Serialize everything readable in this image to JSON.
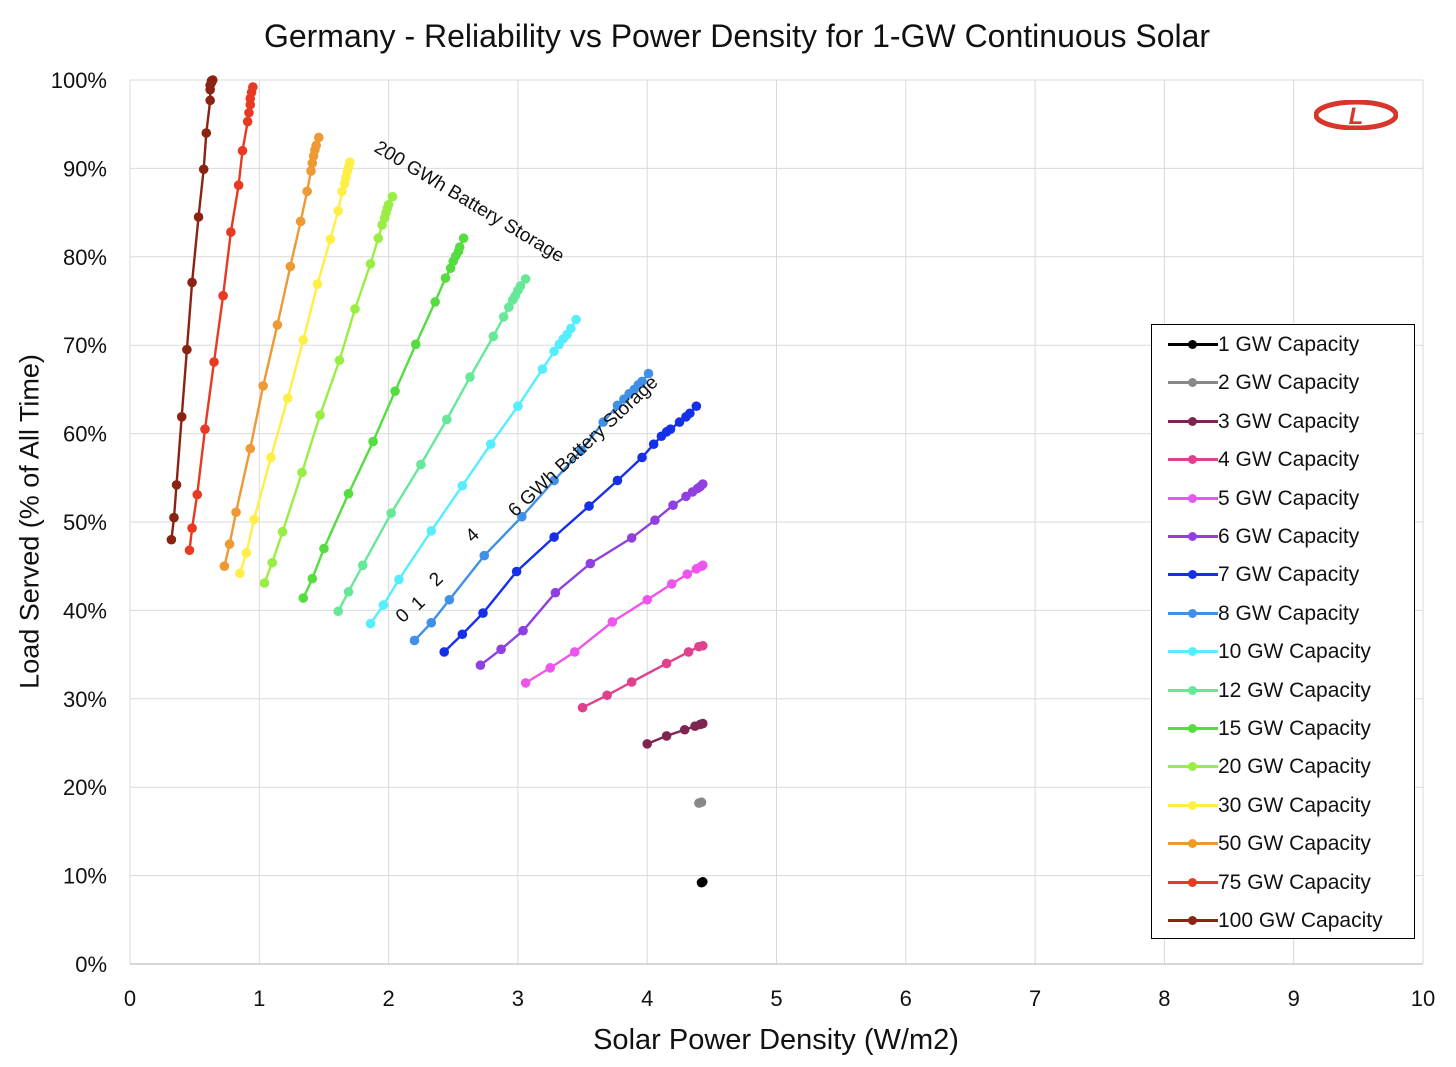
{
  "chart_data": {
    "type": "line",
    "title": "Germany - Reliability vs Power Density for 1-GW Continuous Solar",
    "xlabel": "Solar Power Density (W/m2)",
    "ylabel": "Load Served (% of All Time)",
    "xlim": [
      0,
      10
    ],
    "ylim": [
      0,
      100
    ],
    "xticks": [
      "0",
      "1",
      "2",
      "3",
      "4",
      "5",
      "6",
      "7",
      "8",
      "9",
      "10"
    ],
    "yticks": [
      "0%",
      "10%",
      "20%",
      "30%",
      "40%",
      "50%",
      "60%",
      "70%",
      "80%",
      "90%",
      "100%"
    ],
    "grid": true,
    "legend_position": "right",
    "series": [
      {
        "name": "1 GW Capacity",
        "color": "#000000",
        "points": [
          [
            4.42,
            9.2
          ],
          [
            4.43,
            9.3
          ]
        ]
      },
      {
        "name": "2 GW Capacity",
        "color": "#888888",
        "points": [
          [
            4.4,
            18.2
          ],
          [
            4.42,
            18.3
          ]
        ]
      },
      {
        "name": "3 GW Capacity",
        "color": "#7f2450",
        "points": [
          [
            4.0,
            24.9
          ],
          [
            4.15,
            25.8
          ],
          [
            4.29,
            26.5
          ],
          [
            4.37,
            26.9
          ],
          [
            4.41,
            27.1
          ],
          [
            4.43,
            27.2
          ]
        ]
      },
      {
        "name": "4 GW Capacity",
        "color": "#e0408c",
        "points": [
          [
            3.5,
            29.0
          ],
          [
            3.69,
            30.4
          ],
          [
            3.88,
            31.9
          ],
          [
            4.15,
            34.0
          ],
          [
            4.32,
            35.3
          ],
          [
            4.4,
            35.9
          ],
          [
            4.43,
            36.0
          ]
        ]
      },
      {
        "name": "5 GW Capacity",
        "color": "#ee55ee",
        "points": [
          [
            3.06,
            31.8
          ],
          [
            3.25,
            33.5
          ],
          [
            3.44,
            35.3
          ],
          [
            3.73,
            38.7
          ],
          [
            4.0,
            41.2
          ],
          [
            4.19,
            43.0
          ],
          [
            4.31,
            44.1
          ],
          [
            4.38,
            44.7
          ],
          [
            4.42,
            45.0
          ],
          [
            4.43,
            45.1
          ]
        ]
      },
      {
        "name": "6 GW Capacity",
        "color": "#9040e0",
        "points": [
          [
            2.71,
            33.8
          ],
          [
            2.87,
            35.6
          ],
          [
            3.04,
            37.7
          ],
          [
            3.29,
            42.0
          ],
          [
            3.56,
            45.3
          ],
          [
            3.88,
            48.2
          ],
          [
            4.06,
            50.2
          ],
          [
            4.2,
            51.9
          ],
          [
            4.3,
            52.9
          ],
          [
            4.35,
            53.4
          ],
          [
            4.39,
            53.8
          ],
          [
            4.41,
            54.0
          ],
          [
            4.43,
            54.3
          ]
        ]
      },
      {
        "name": "7 GW Capacity",
        "color": "#1530e8",
        "points": [
          [
            2.43,
            35.3
          ],
          [
            2.57,
            37.3
          ],
          [
            2.73,
            39.7
          ],
          [
            2.99,
            44.4
          ],
          [
            3.28,
            48.3
          ],
          [
            3.55,
            51.8
          ],
          [
            3.77,
            54.7
          ],
          [
            3.96,
            57.3
          ],
          [
            4.05,
            58.8
          ],
          [
            4.11,
            59.7
          ],
          [
            4.15,
            60.2
          ],
          [
            4.18,
            60.5
          ],
          [
            4.25,
            61.3
          ],
          [
            4.3,
            61.9
          ],
          [
            4.33,
            62.3
          ],
          [
            4.38,
            63.1
          ]
        ]
      },
      {
        "name": "8 GW Capacity",
        "color": "#4090e8",
        "points": [
          [
            2.2,
            36.6
          ],
          [
            2.33,
            38.6
          ],
          [
            2.47,
            41.2
          ],
          [
            2.74,
            46.2
          ],
          [
            3.03,
            50.6
          ],
          [
            3.28,
            54.7
          ],
          [
            3.49,
            58.1
          ],
          [
            3.66,
            61.3
          ],
          [
            3.77,
            63.2
          ],
          [
            3.82,
            63.9
          ],
          [
            3.86,
            64.5
          ],
          [
            3.9,
            65.0
          ],
          [
            3.93,
            65.5
          ],
          [
            3.96,
            65.9
          ],
          [
            4.01,
            66.8
          ]
        ]
      },
      {
        "name": "10 GW Capacity",
        "color": "#55eeff",
        "points": [
          [
            1.86,
            38.5
          ],
          [
            1.96,
            40.6
          ],
          [
            2.08,
            43.5
          ],
          [
            2.33,
            49.0
          ],
          [
            2.57,
            54.1
          ],
          [
            2.79,
            58.8
          ],
          [
            3.0,
            63.1
          ],
          [
            3.19,
            67.3
          ],
          [
            3.28,
            69.3
          ],
          [
            3.32,
            70.1
          ],
          [
            3.35,
            70.7
          ],
          [
            3.38,
            71.2
          ],
          [
            3.41,
            71.9
          ],
          [
            3.45,
            72.9
          ]
        ]
      },
      {
        "name": "12 GW Capacity",
        "color": "#66e899",
        "points": [
          [
            1.61,
            39.9
          ],
          [
            1.69,
            42.1
          ],
          [
            1.8,
            45.1
          ],
          [
            2.02,
            51.0
          ],
          [
            2.25,
            56.5
          ],
          [
            2.45,
            61.6
          ],
          [
            2.63,
            66.4
          ],
          [
            2.81,
            71.0
          ],
          [
            2.89,
            73.2
          ],
          [
            2.93,
            74.3
          ],
          [
            2.96,
            75.1
          ],
          [
            2.98,
            75.6
          ],
          [
            3.0,
            76.2
          ],
          [
            3.02,
            76.7
          ],
          [
            3.06,
            77.5
          ]
        ]
      },
      {
        "name": "15 GW Capacity",
        "color": "#55dd40",
        "points": [
          [
            1.34,
            41.4
          ],
          [
            1.41,
            43.6
          ],
          [
            1.5,
            47.0
          ],
          [
            1.69,
            53.2
          ],
          [
            1.88,
            59.1
          ],
          [
            2.05,
            64.8
          ],
          [
            2.21,
            70.1
          ],
          [
            2.36,
            74.9
          ],
          [
            2.44,
            77.6
          ],
          [
            2.48,
            78.7
          ],
          [
            2.5,
            79.5
          ],
          [
            2.52,
            80.1
          ],
          [
            2.54,
            80.6
          ],
          [
            2.55,
            81.1
          ],
          [
            2.58,
            82.1
          ]
        ]
      },
      {
        "name": "20 GW Capacity",
        "color": "#99ee44",
        "points": [
          [
            1.04,
            43.1
          ],
          [
            1.1,
            45.4
          ],
          [
            1.18,
            48.9
          ],
          [
            1.33,
            55.6
          ],
          [
            1.47,
            62.1
          ],
          [
            1.62,
            68.3
          ],
          [
            1.74,
            74.1
          ],
          [
            1.86,
            79.2
          ],
          [
            1.92,
            82.1
          ],
          [
            1.95,
            83.6
          ],
          [
            1.97,
            84.4
          ],
          [
            1.98,
            85.0
          ],
          [
            1.99,
            85.5
          ],
          [
            2.0,
            85.9
          ],
          [
            2.03,
            86.8
          ]
        ]
      },
      {
        "name": "30 GW Capacity",
        "color": "#ffee44",
        "points": [
          [
            0.85,
            44.2
          ],
          [
            0.9,
            46.5
          ],
          [
            0.96,
            50.3
          ],
          [
            1.09,
            57.3
          ],
          [
            1.22,
            64.0
          ],
          [
            1.34,
            70.6
          ],
          [
            1.45,
            76.9
          ],
          [
            1.55,
            82.0
          ],
          [
            1.61,
            85.2
          ],
          [
            1.64,
            87.4
          ],
          [
            1.66,
            88.3
          ],
          [
            1.67,
            89.0
          ],
          [
            1.68,
            89.6
          ],
          [
            1.69,
            90.1
          ],
          [
            1.7,
            90.7
          ]
        ]
      },
      {
        "name": "50 GW Capacity",
        "color": "#ee9933",
        "points": [
          [
            0.73,
            45.0
          ],
          [
            0.77,
            47.5
          ],
          [
            0.82,
            51.1
          ],
          [
            0.93,
            58.3
          ],
          [
            1.03,
            65.4
          ],
          [
            1.14,
            72.3
          ],
          [
            1.24,
            78.9
          ],
          [
            1.32,
            84.0
          ],
          [
            1.37,
            87.4
          ],
          [
            1.4,
            89.7
          ],
          [
            1.41,
            90.6
          ],
          [
            1.42,
            91.4
          ],
          [
            1.43,
            92.1
          ],
          [
            1.44,
            92.6
          ],
          [
            1.46,
            93.5
          ]
        ]
      },
      {
        "name": "75 GW Capacity",
        "color": "#e83a22",
        "points": [
          [
            0.46,
            46.8
          ],
          [
            0.48,
            49.3
          ],
          [
            0.52,
            53.1
          ],
          [
            0.58,
            60.5
          ],
          [
            0.65,
            68.1
          ],
          [
            0.72,
            75.6
          ],
          [
            0.78,
            82.8
          ],
          [
            0.84,
            88.1
          ],
          [
            0.87,
            92.0
          ],
          [
            0.91,
            95.3
          ],
          [
            0.92,
            96.3
          ],
          [
            0.93,
            97.2
          ],
          [
            0.93,
            97.9
          ],
          [
            0.94,
            98.6
          ],
          [
            0.95,
            99.2
          ]
        ]
      },
      {
        "name": "100 GW Capacity",
        "color": "#8a2412",
        "points": [
          [
            0.32,
            48.0
          ],
          [
            0.34,
            50.5
          ],
          [
            0.36,
            54.2
          ],
          [
            0.4,
            61.9
          ],
          [
            0.44,
            69.5
          ],
          [
            0.48,
            77.1
          ],
          [
            0.53,
            84.5
          ],
          [
            0.57,
            89.9
          ],
          [
            0.59,
            94.0
          ],
          [
            0.62,
            97.7
          ],
          [
            0.62,
            98.9
          ],
          [
            0.62,
            99.4
          ],
          [
            0.63,
            99.7
          ],
          [
            0.63,
            99.9
          ],
          [
            0.64,
            100.0
          ]
        ]
      }
    ],
    "annotations": [
      {
        "text": "200 GWh Battery Storage",
        "x": 1.88,
        "y": 92.0,
        "angle": 31
      },
      {
        "text": "6  GWh Battery Storage",
        "x": 2.98,
        "y": 50.5,
        "angle": -43
      },
      {
        "text": "0",
        "x": 2.11,
        "y": 38.5,
        "angle": -43
      },
      {
        "text": "1",
        "x": 2.23,
        "y": 39.9,
        "angle": -43
      },
      {
        "text": "2",
        "x": 2.37,
        "y": 42.6,
        "angle": -43
      },
      {
        "text": "4",
        "x": 2.65,
        "y": 47.6,
        "angle": -43
      }
    ]
  },
  "logo": {
    "icon": "L-logo-icon",
    "letter": "L",
    "color": "#d8362a"
  }
}
